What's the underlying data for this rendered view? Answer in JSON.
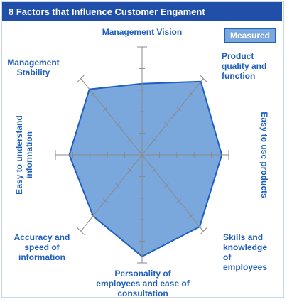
{
  "chart_data": {
    "type": "radar",
    "title": "8 Factors that Influence Customer Engament",
    "categories": [
      "Management Vision",
      "Product quality and function",
      "Easy to use products",
      "Skills and knowledge of employees",
      "Personality of employees and ease of consultation",
      "Accuracy and speed of information",
      "Easy to understand information",
      "Management Stability"
    ],
    "series": [
      {
        "name": "Measured",
        "color": "#7aa7dc",
        "values": [
          3.3,
          4.8,
          4.6,
          4.7,
          4.7,
          4.0,
          4.2,
          4.3
        ]
      }
    ],
    "rlim": [
      0,
      5
    ],
    "rticks": [
      1,
      2,
      3,
      4,
      5
    ],
    "legend": "top-right"
  }
}
